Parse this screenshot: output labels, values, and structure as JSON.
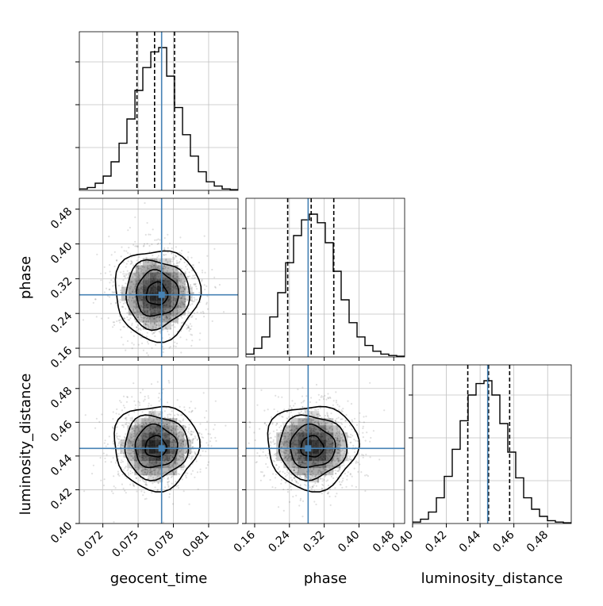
{
  "chart_data": {
    "type": "corner",
    "params": [
      {
        "key": "geocent_time",
        "label": "geocent_time",
        "range": [
          0.07,
          0.0835
        ],
        "ticks": [
          0.072,
          0.075,
          0.078,
          0.081
        ],
        "tick_labels": [
          "0.072",
          "0.075",
          "0.078",
          "0.081"
        ],
        "truth": 0.077,
        "quantiles": [
          0.0749,
          0.0764,
          0.0781
        ]
      },
      {
        "key": "phase",
        "label": "phase",
        "range": [
          0.14,
          0.505
        ],
        "ticks": [
          0.16,
          0.24,
          0.32,
          0.4,
          0.48
        ],
        "tick_labels": [
          "0.16",
          "0.24",
          "0.32",
          "0.40",
          "0.48"
        ],
        "truth": 0.283,
        "quantiles": [
          0.236,
          0.29,
          0.342
        ]
      },
      {
        "key": "luminosity_distance",
        "label": "luminosity_distance",
        "range": [
          0.4,
          0.494
        ],
        "ticks": [
          0.4,
          0.42,
          0.44,
          0.46,
          0.48
        ],
        "tick_labels": [
          "0.40",
          "0.42",
          "0.44",
          "0.46",
          "0.48"
        ],
        "truth": 0.4445,
        "quantiles": [
          0.4327,
          0.445,
          0.4575
        ]
      }
    ],
    "histograms": [
      {
        "param": "geocent_time",
        "edges": [
          0.07,
          0.07068,
          0.07135,
          0.07203,
          0.0727,
          0.07338,
          0.07405,
          0.07473,
          0.0754,
          0.07608,
          0.07675,
          0.07743,
          0.0781,
          0.07878,
          0.07945,
          0.08013,
          0.0808,
          0.08148,
          0.08215,
          0.08283,
          0.0835
        ],
        "counts": [
          0.01,
          0.02,
          0.05,
          0.1,
          0.2,
          0.33,
          0.5,
          0.7,
          0.86,
          0.97,
          1.0,
          0.8,
          0.58,
          0.39,
          0.24,
          0.13,
          0.06,
          0.03,
          0.01,
          0.005
        ]
      },
      {
        "param": "phase",
        "edges": [
          0.14,
          0.15825,
          0.1765,
          0.19475,
          0.213,
          0.23125,
          0.2495,
          0.26775,
          0.286,
          0.30425,
          0.3225,
          0.34075,
          0.359,
          0.37725,
          0.3955,
          0.41375,
          0.432,
          0.45025,
          0.4685,
          0.48675,
          0.505
        ],
        "counts": [
          0.02,
          0.06,
          0.14,
          0.28,
          0.45,
          0.66,
          0.85,
          0.96,
          1.0,
          0.94,
          0.8,
          0.6,
          0.4,
          0.24,
          0.14,
          0.08,
          0.04,
          0.02,
          0.01,
          0.005
        ]
      },
      {
        "param": "luminosity_distance",
        "edges": [
          0.4,
          0.4047,
          0.4094,
          0.4141,
          0.4188,
          0.4235,
          0.4282,
          0.4329,
          0.4376,
          0.4423,
          0.447,
          0.4517,
          0.4564,
          0.4611,
          0.4658,
          0.4705,
          0.4752,
          0.4799,
          0.4846,
          0.4893,
          0.494
        ],
        "counts": [
          0.01,
          0.03,
          0.08,
          0.18,
          0.33,
          0.52,
          0.72,
          0.9,
          0.98,
          1.0,
          0.9,
          0.7,
          0.5,
          0.32,
          0.18,
          0.1,
          0.05,
          0.02,
          0.01,
          0.005
        ]
      }
    ],
    "pairs": [
      {
        "x": "geocent_time",
        "y": "phase",
        "center": [
          0.0766,
          0.285
        ],
        "sigma": [
          0.0018,
          0.052
        ],
        "contour_levels": [
          0.5,
          1.0,
          1.5,
          2.0
        ]
      },
      {
        "x": "geocent_time",
        "y": "luminosity_distance",
        "center": [
          0.0765,
          0.4455
        ],
        "sigma": [
          0.0018,
          0.0125
        ],
        "contour_levels": [
          0.5,
          1.0,
          1.5,
          2.0
        ]
      },
      {
        "x": "phase",
        "y": "luminosity_distance",
        "center": [
          0.292,
          0.4455
        ],
        "sigma": [
          0.052,
          0.0125
        ],
        "contour_levels": [
          0.5,
          1.0,
          1.5,
          2.0
        ]
      }
    ],
    "colors": {
      "truth": "#4682b4",
      "hist": "#000000",
      "grid": "#c0c0c0",
      "density": "#000000"
    },
    "grid": true
  }
}
